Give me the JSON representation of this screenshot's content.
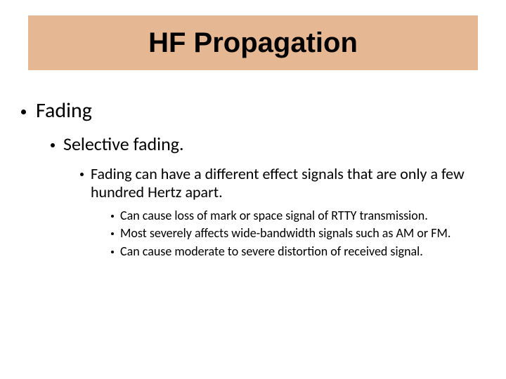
{
  "colors": {
    "title_background": "#e6b793",
    "title_text": "#000000",
    "body_text": "#000000",
    "bullet": "#000000",
    "page_background": "#ffffff"
  },
  "typography": {
    "title_font": "Arial",
    "title_weight": "bold",
    "title_size_pt": 30,
    "body_font": "Calibri",
    "level1_size_pt": 22,
    "level2_size_pt": 20,
    "level3_size_pt": 16,
    "level4_size_pt": 14
  },
  "title": "HF Propagation",
  "bullets": {
    "level1": "Fading",
    "level2": "Selective fading.",
    "level3": "Fading can have a different effect signals that are only a few hundred Hertz apart.",
    "level4": [
      "Can cause loss of mark or space signal of RTTY transmission.",
      "Most severely affects wide-bandwidth signals such as AM or FM.",
      "Can cause moderate to severe distortion of received signal."
    ]
  }
}
